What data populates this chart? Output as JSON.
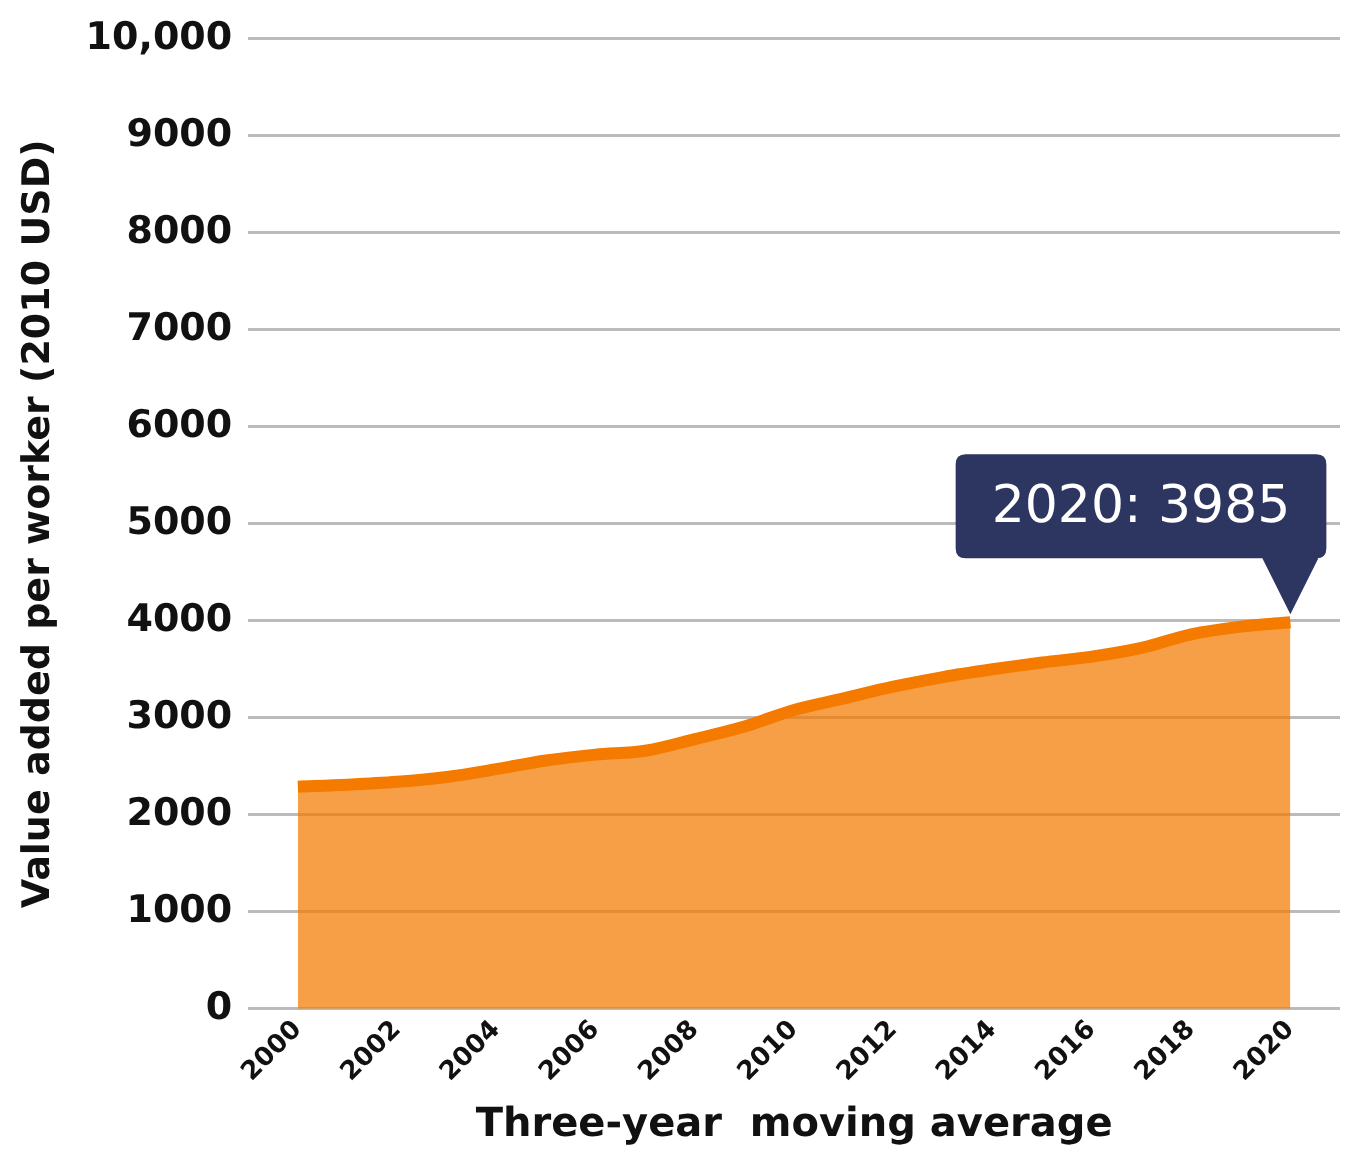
{
  "chart_data": {
    "type": "area",
    "xlabel": "Three-year  moving average",
    "ylabel": "Value added per worker (2010 USD)",
    "x": [
      2000,
      2001,
      2002,
      2003,
      2004,
      2005,
      2006,
      2007,
      2008,
      2009,
      2010,
      2011,
      2012,
      2013,
      2014,
      2015,
      2016,
      2017,
      2018,
      2019,
      2020
    ],
    "series": [
      {
        "color": "#f47a00",
        "values": [
          2290,
          2310,
          2340,
          2390,
          2470,
          2560,
          2620,
          2660,
          2780,
          2910,
          3080,
          3200,
          3320,
          3420,
          3500,
          3570,
          3630,
          3720,
          3860,
          3940,
          3985
        ]
      }
    ],
    "xlim": [
      1999,
      2021
    ],
    "xticks": [
      2000,
      2002,
      2004,
      2006,
      2008,
      2010,
      2012,
      2014,
      2016,
      2018,
      2020
    ],
    "ylim": [
      0,
      10000
    ],
    "yticks": [
      0,
      1000,
      2000,
      3000,
      4000,
      5000,
      6000,
      7000,
      8000,
      9000,
      {
        "value": 10000,
        "label": "10,000"
      }
    ],
    "grid": "y",
    "legend": false,
    "annotations": [
      {
        "text": "2020: 3985",
        "x": 2020,
        "y": 3985
      }
    ]
  }
}
